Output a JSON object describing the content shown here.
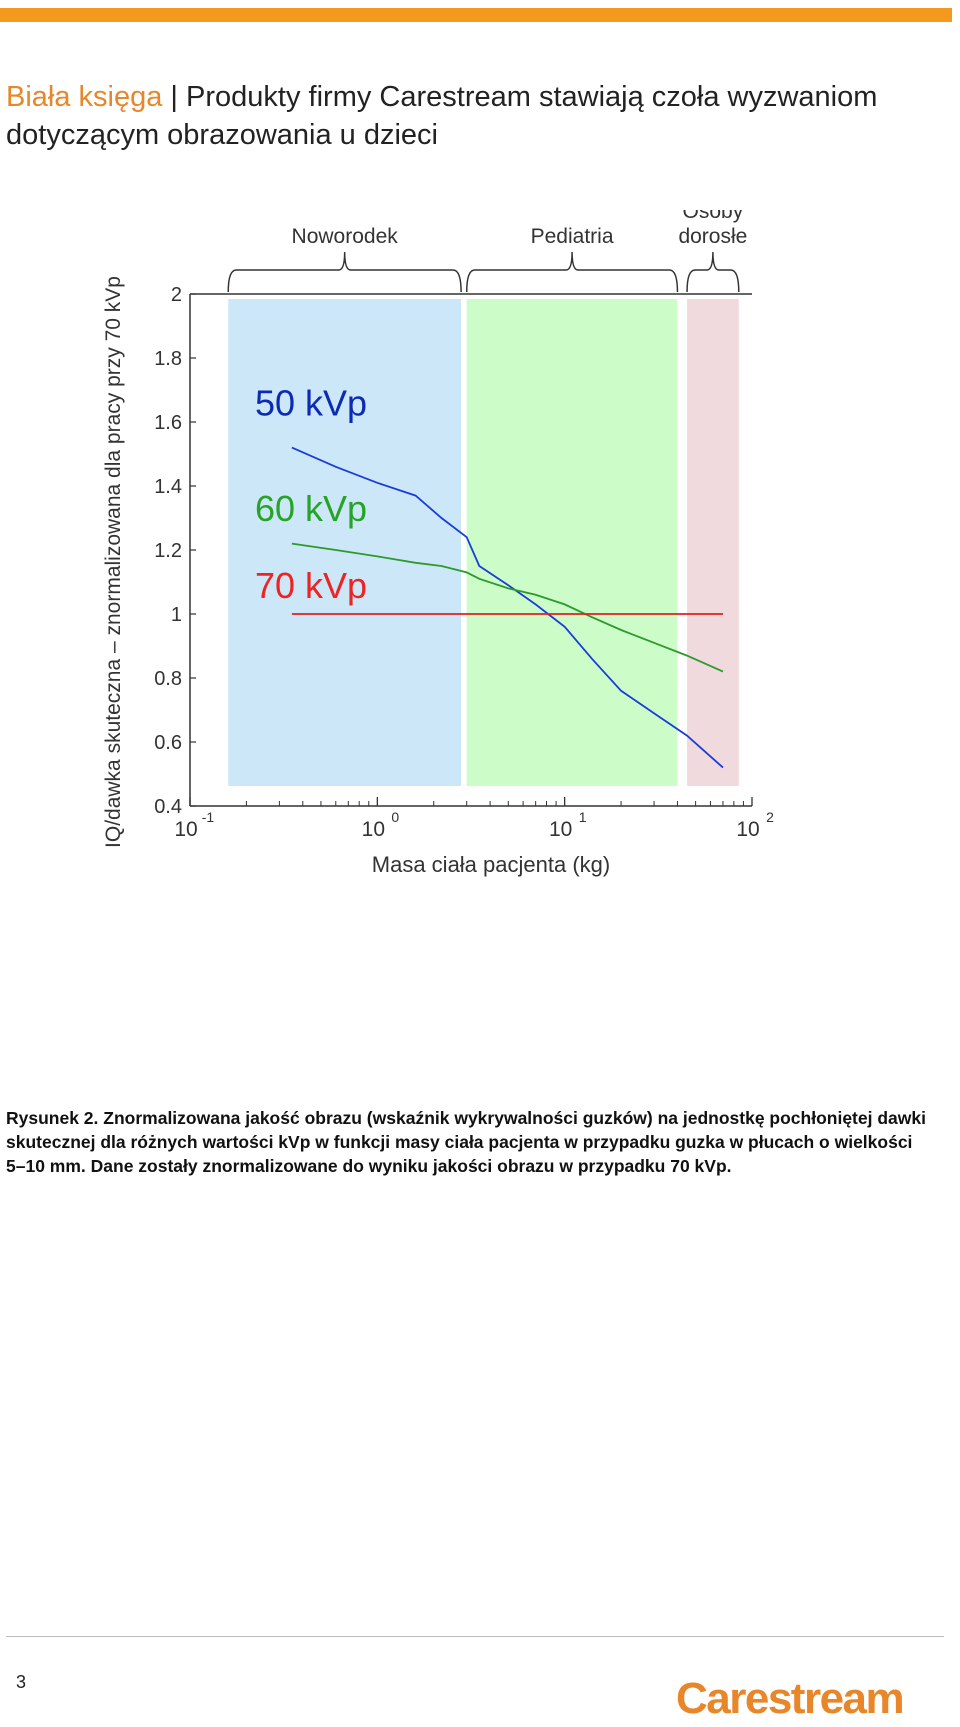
{
  "header": {
    "brand": "Biała księga",
    "separator": " | ",
    "title": "Produkty firmy Carestream stawiają czoła wyzwaniom dotyczącym obrazowania u dzieci"
  },
  "chart_data": {
    "type": "line",
    "x_scale": "log",
    "xlim": [
      0.1,
      100
    ],
    "ylim": [
      0.4,
      2
    ],
    "xlabel": "Masa ciała pacjenta (kg)",
    "ylabel": "IQ/dawka skuteczna – znormalizowana dla pracy przy 70 kVp",
    "y_ticks": [
      "0.4",
      "0.6",
      "0.8",
      "1",
      "1.2",
      "1.4",
      "1.6",
      "1.8",
      "2"
    ],
    "x_ticks": [
      {
        "base": "10",
        "exp": "-1"
      },
      {
        "base": "10",
        "exp": "0"
      },
      {
        "base": "10",
        "exp": "1"
      },
      {
        "base": "10",
        "exp": "2"
      }
    ],
    "regions": [
      {
        "label": "Noworodek",
        "from": 0.16,
        "to": 2.8,
        "color": "#cce8f8"
      },
      {
        "label": "Pediatria",
        "from": 3.0,
        "to": 40,
        "color": "#ccfcc8"
      },
      {
        "label": "Osoby dorosłe",
        "from": 45,
        "to": 85,
        "color": "#f0dade"
      }
    ],
    "series": [
      {
        "name": "50 kVp",
        "color": "#1c3cd8",
        "label_color": "#0c2ab4",
        "x": [
          0.35,
          0.6,
          1.0,
          1.6,
          2.2,
          3.0,
          3.5,
          5,
          7,
          10,
          14,
          20,
          30,
          45,
          70
        ],
        "y": [
          1.52,
          1.46,
          1.41,
          1.37,
          1.3,
          1.24,
          1.15,
          1.09,
          1.03,
          0.96,
          0.86,
          0.76,
          0.69,
          0.62,
          0.52
        ]
      },
      {
        "name": "60 kVp",
        "color": "#2c9a2c",
        "label_color": "#26a426",
        "x": [
          0.35,
          0.6,
          1.0,
          1.6,
          2.2,
          3.0,
          3.5,
          5,
          7,
          10,
          14,
          20,
          30,
          45,
          70
        ],
        "y": [
          1.22,
          1.2,
          1.18,
          1.16,
          1.15,
          1.13,
          1.11,
          1.08,
          1.06,
          1.03,
          0.99,
          0.95,
          0.91,
          0.87,
          0.82
        ]
      },
      {
        "name": "70 kVp",
        "color": "#e02020",
        "label_color": "#ec2424",
        "x": [
          0.35,
          70
        ],
        "y": [
          1.0,
          1.0
        ]
      }
    ]
  },
  "caption": "Rysunek 2. Znormalizowana jakość obrazu (wskaźnik wykrywalności guzków) na jednostkę pochłoniętej dawki skutecznej dla różnych wartości kVp w funkcji masy ciała pacjenta w przypadku guzka w płucach o wielkości 5–10 mm. Dane zostały znormalizowane do wyniku jakości obrazu w przypadku 70 kVp.",
  "footer": {
    "page_number": "3",
    "logo_text": "Carestream",
    "accent_color": "#f39a1e"
  }
}
